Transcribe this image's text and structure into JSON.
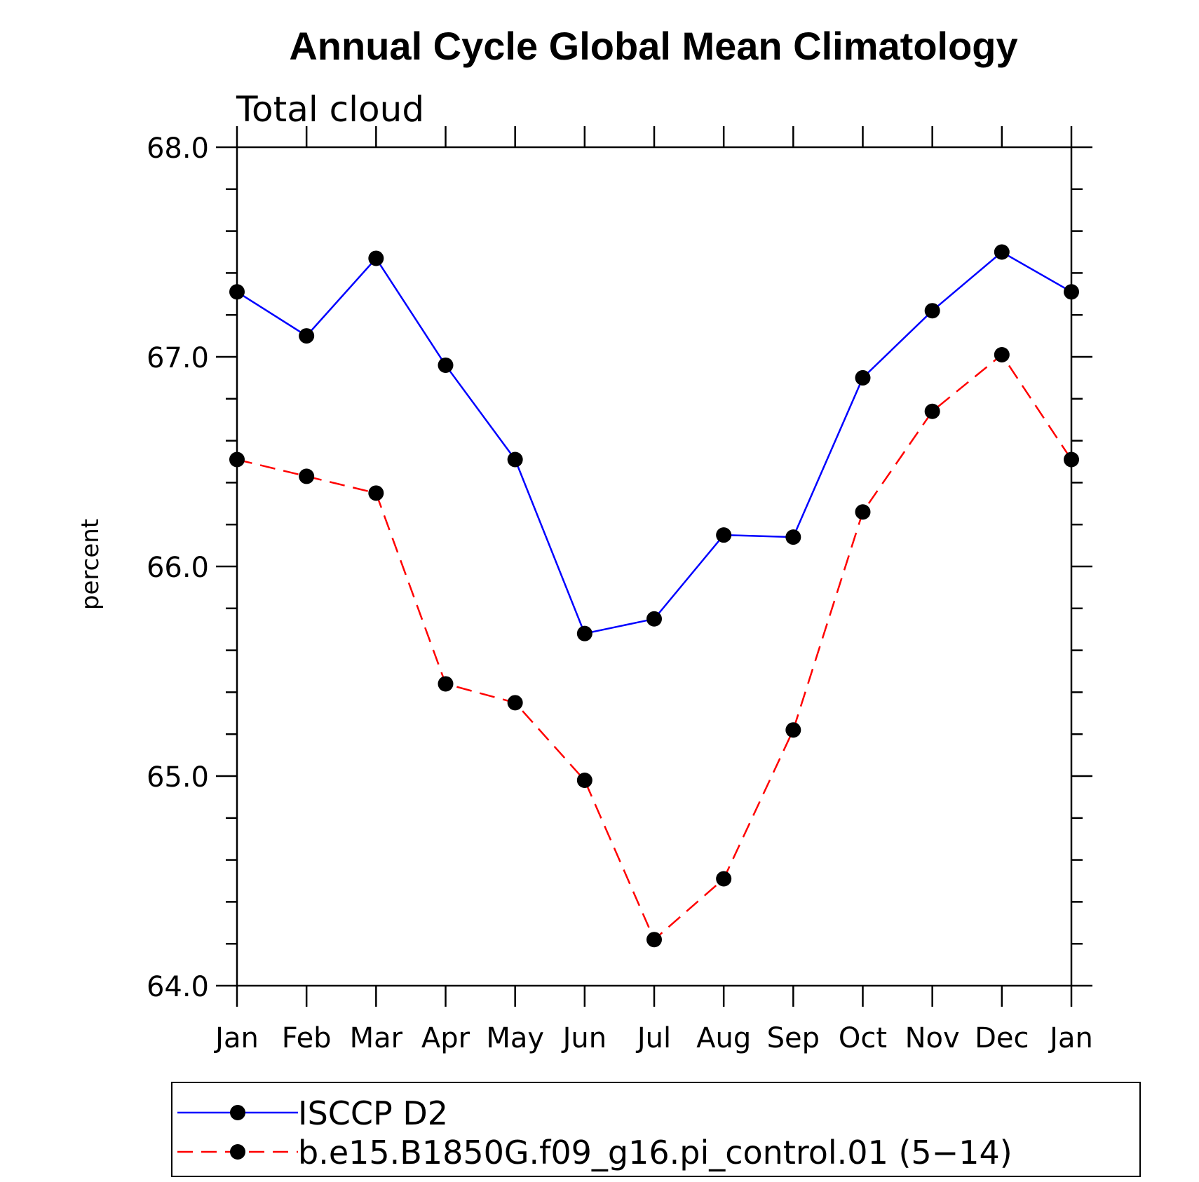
{
  "chart_data": {
    "type": "line",
    "title": "Annual Cycle Global Mean Climatology",
    "subtitle": "Total cloud",
    "ylabel": "percent",
    "xlabel": "",
    "ylim": [
      64.0,
      68.0
    ],
    "y_major_ticks": [
      "64.0",
      "65.0",
      "66.0",
      "67.0",
      "68.0"
    ],
    "y_minor_step": 0.2,
    "categories": [
      "Jan",
      "Feb",
      "Mar",
      "Apr",
      "May",
      "Jun",
      "Jul",
      "Aug",
      "Sep",
      "Oct",
      "Nov",
      "Dec",
      "Jan"
    ],
    "grid": false,
    "legend_position": "bottom",
    "series": [
      {
        "name": "ISCCP D2",
        "color": "#0000ff",
        "dash": "solid",
        "marker": "filled-circle",
        "values": [
          67.31,
          67.1,
          67.47,
          66.96,
          66.51,
          65.68,
          65.75,
          66.15,
          66.14,
          66.9,
          67.22,
          67.5,
          67.31
        ]
      },
      {
        "name": "b.e15.B1850G.f09_g16.pi_control.01 (5−14)",
        "color": "#ff0000",
        "dash": "dashed",
        "marker": "filled-circle",
        "values": [
          66.51,
          66.43,
          66.35,
          65.44,
          65.35,
          64.98,
          64.22,
          64.51,
          65.22,
          66.26,
          66.74,
          67.01,
          66.51
        ]
      }
    ]
  }
}
